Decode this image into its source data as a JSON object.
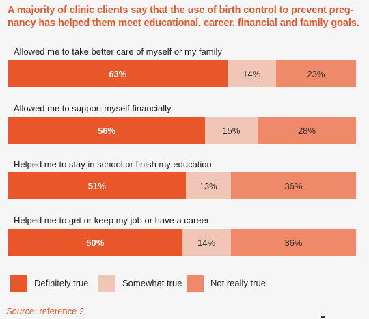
{
  "title": {
    "line1": "A majority of clinic clients say that the use of birth control to prevent preg-",
    "line2": "nancy has helped them meet educational, career, financial and family goals."
  },
  "colors": {
    "definitely_true": "#e8562a",
    "somewhat_true": "#f2c6b7",
    "not_really_true": "#ee8a69",
    "title": "#e8562a",
    "background": "#f6f6f6"
  },
  "legend": {
    "definitely_true": "Definitely true",
    "somewhat_true": "Somewhat true",
    "not_really_true": "Not really true"
  },
  "source": {
    "label": "Source:",
    "text": " reference 2."
  },
  "chart_data": {
    "type": "bar",
    "orientation": "horizontal",
    "stacked": true,
    "unit": "%",
    "xlim": [
      0,
      100
    ],
    "title": "A majority of clinic clients say that the use of birth control to prevent pregnancy has helped them meet educational, career, financial and family goals.",
    "categories": [
      "Allowed me to take better care of myself or my family",
      "Allowed me to support myself financially",
      "Helped me to stay in school or finish my education",
      "Helped me to get or keep my job or have a career"
    ],
    "series": [
      {
        "name": "Definitely true",
        "key": "definitely",
        "color": "#e8562a",
        "values": [
          63,
          56,
          51,
          50
        ]
      },
      {
        "name": "Somewhat true",
        "key": "somewhat",
        "color": "#f2c6b7",
        "values": [
          14,
          15,
          13,
          14
        ]
      },
      {
        "name": "Not really true",
        "key": "notreally",
        "color": "#ee8a69",
        "values": [
          23,
          28,
          36,
          36
        ]
      }
    ],
    "data_labels": [
      [
        "63%",
        "14%",
        "23%"
      ],
      [
        "56%",
        "15%",
        "28%"
      ],
      [
        "51%",
        "13%",
        "36%"
      ],
      [
        "50%",
        "14%",
        "36%"
      ]
    ],
    "legend_position": "bottom",
    "grid": false
  }
}
